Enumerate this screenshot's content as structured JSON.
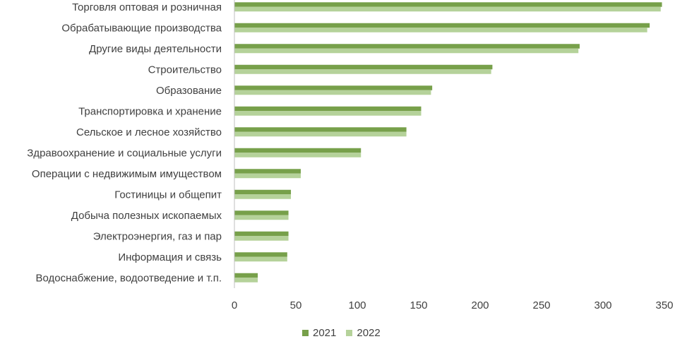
{
  "chart_data": {
    "type": "bar",
    "orientation": "horizontal",
    "categories": [
      "Торговля оптовая и розничная",
      "Обрабатывающие производства",
      "Другие виды деятельности",
      "Строительство",
      "Образование",
      "Транспортировка и хранение",
      "Сельское и лесное хозяйство",
      "Здравоохранение и социальные услуги",
      "Операции с недвижимым имуществом",
      "Гостиницы и общепит",
      "Добыча полезных ископаемых",
      "Электроэнергия, газ и пар",
      "Информация и связь",
      "Водоснабжение, водоотведение и т.п."
    ],
    "series": [
      {
        "name": "2021",
        "color": "#77a04a",
        "values": [
          348,
          338,
          281,
          210,
          161,
          152,
          140,
          103,
          54,
          46,
          44,
          44,
          43,
          19
        ]
      },
      {
        "name": "2022",
        "color": "#b5d29a",
        "values": [
          347,
          336,
          280,
          209,
          160,
          152,
          140,
          103,
          54,
          46,
          44,
          44,
          43,
          19
        ]
      }
    ],
    "xlim": [
      0,
      350
    ],
    "xticks": [
      "0",
      "50",
      "100",
      "150",
      "200",
      "250",
      "300",
      "350"
    ],
    "legend_position": "bottom",
    "grid": false
  }
}
